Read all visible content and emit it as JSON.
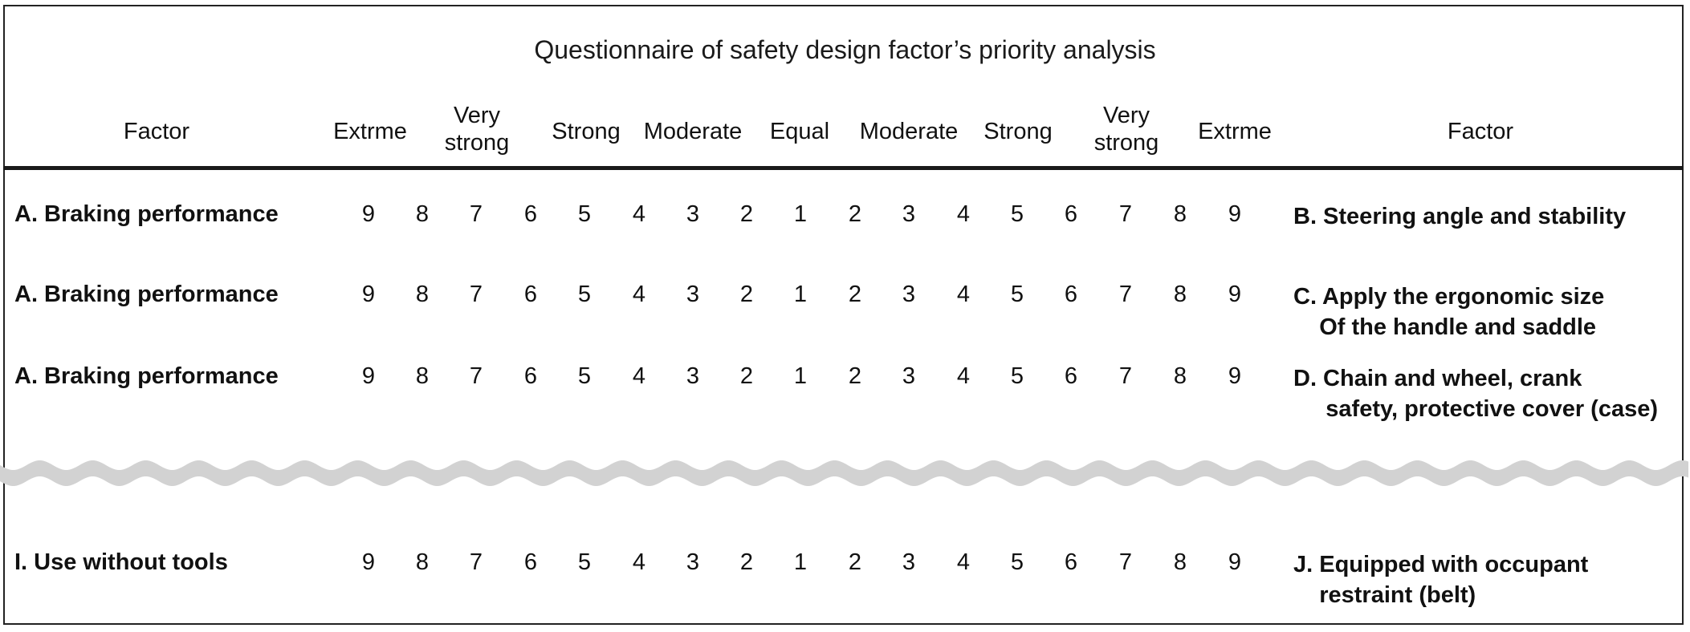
{
  "title": "Questionnaire of safety design factor’s priority analysis",
  "header": {
    "factor_left": "Factor",
    "factor_right": "Factor",
    "scale": [
      {
        "line1": "Extrme",
        "line2": ""
      },
      {
        "line1": "Very",
        "line2": "strong"
      },
      {
        "line1": "Strong",
        "line2": ""
      },
      {
        "line1": "Moderate",
        "line2": ""
      },
      {
        "line1": "Equal",
        "line2": ""
      },
      {
        "line1": "Moderate",
        "line2": ""
      },
      {
        "line1": "Strong",
        "line2": ""
      },
      {
        "line1": "Very",
        "line2": "strong"
      },
      {
        "line1": "Extrme",
        "line2": ""
      }
    ]
  },
  "scale_numbers": [
    "9",
    "8",
    "7",
    "6",
    "5",
    "4",
    "3",
    "2",
    "1",
    "2",
    "3",
    "4",
    "5",
    "6",
    "7",
    "8",
    "9"
  ],
  "rows": [
    {
      "left": "A. Braking performance",
      "right": "B. Steering angle and stability"
    },
    {
      "left": "A. Braking performance",
      "right": "C. Apply the ergonomic size\n    Of the handle and saddle"
    },
    {
      "left": "A. Braking performance",
      "right": "D. Chain and wheel, crank\n     safety, protective cover (case)"
    },
    {
      "left": "I. Use without tools",
      "right": "J. Equipped with occupant\n    restraint (belt)"
    }
  ]
}
